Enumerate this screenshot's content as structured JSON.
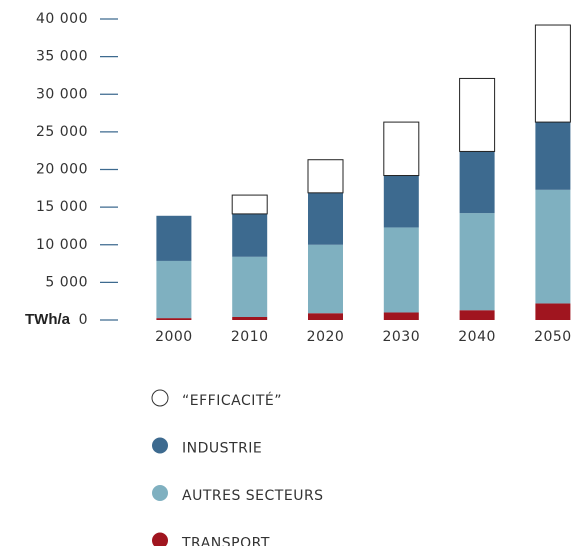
{
  "chart_data": {
    "type": "stacked_bar",
    "ylabel": "TWh/a",
    "categories": [
      "2000",
      "2010",
      "2020",
      "2030",
      "2040",
      "2050"
    ],
    "series": [
      {
        "name": "TRANSPORT",
        "color": "#a0151f",
        "values": [
          250,
          400,
          900,
          1000,
          1300,
          2200
        ]
      },
      {
        "name": "AUTRES SECTEURS",
        "color": "#7fb0c0",
        "values": [
          7600,
          8000,
          9100,
          11300,
          12900,
          15100
        ]
      },
      {
        "name": "INDUSTRIE",
        "color": "#3d6a8f",
        "values": [
          6000,
          5700,
          6900,
          6900,
          8200,
          9000
        ]
      },
      {
        "name": "“EFFICACITÉ”",
        "color": "#ffffff",
        "values": [
          0,
          2500,
          4400,
          7100,
          9700,
          12900
        ]
      }
    ],
    "legend_order": [
      3,
      2,
      1,
      0
    ],
    "ylim": [
      0,
      40000
    ],
    "yticks": [
      0,
      {
        "value": 5000,
        "label": "5 000"
      },
      {
        "value": 10000,
        "label": "10 000"
      },
      {
        "value": 15000,
        "label": "15 000"
      },
      {
        "value": 20000,
        "label": "20 000"
      },
      {
        "value": 25000,
        "label": "25 000"
      },
      {
        "value": 30000,
        "label": "30 000"
      },
      {
        "value": 35000,
        "label": "35 000"
      },
      {
        "value": 40000,
        "label": "40 000"
      }
    ]
  }
}
